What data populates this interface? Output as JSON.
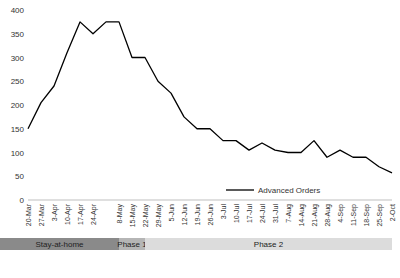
{
  "chart_data": {
    "type": "line",
    "categories": [
      "20-Mar",
      "27-Mar",
      "3-Apr",
      "10-Apr",
      "17-Apr",
      "24-Apr",
      null,
      "8-May",
      "15-May",
      "22-May",
      "29-May",
      "5-Jun",
      "12-Jun",
      "19-Jun",
      "26-Jun",
      "3-Jul",
      "10-Jul",
      "17-Jul",
      "24-Jul",
      "31-Jul",
      "7-Aug",
      "14-Aug",
      "21-Aug",
      "28-Aug",
      "4-Sep",
      "11-Sep",
      "18-Sep",
      "25-Sep",
      "2-Oct"
    ],
    "series": [
      {
        "name": "Advanced Orders",
        "color": "#000000",
        "values": [
          150,
          205,
          240,
          310,
          375,
          350,
          375,
          375,
          300,
          300,
          250,
          225,
          175,
          150,
          150,
          125,
          125,
          105,
          120,
          105,
          100,
          100,
          125,
          90,
          105,
          90,
          90,
          70,
          57
        ]
      }
    ],
    "ylim": [
      0,
      400
    ],
    "yticks": [
      0,
      50,
      100,
      150,
      200,
      250,
      300,
      350,
      400
    ],
    "grid": false,
    "legend": "bottom",
    "annotations": [
      {
        "text": "Stay-at-home",
        "from": "20-Mar",
        "to": "8-May",
        "color": "#8a8a8a"
      },
      {
        "text": "Phase 1",
        "from": "8-May",
        "to": "22-May",
        "color": "#b5b5b5"
      },
      {
        "text": "Phase 2",
        "from": "22-May",
        "to": "2-Oct",
        "color": "#dcdcdc"
      }
    ]
  }
}
